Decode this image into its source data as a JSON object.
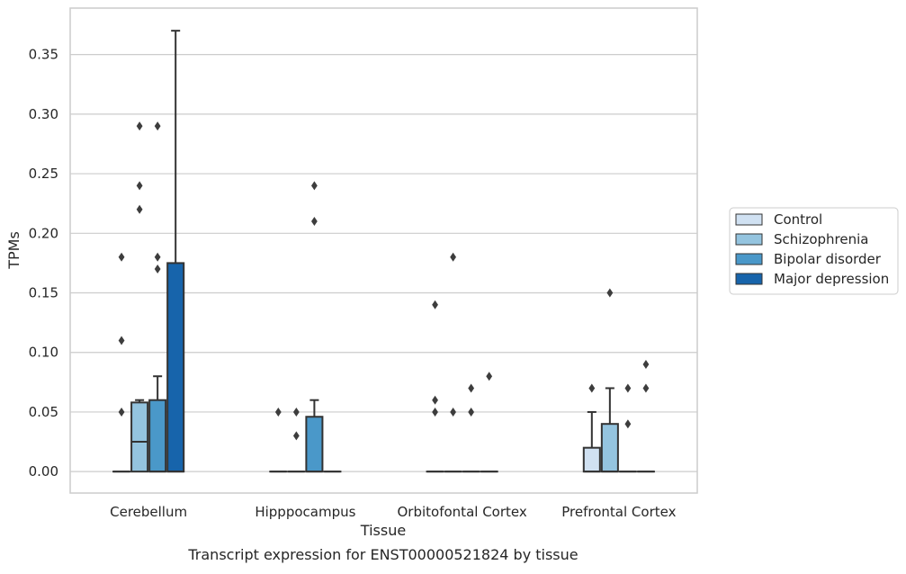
{
  "chart_data": {
    "type": "box",
    "xlabel": "Tissue",
    "ylabel": "TPMs",
    "caption": "Transcript expression for ENST00000521824 by tissue",
    "ylim": [
      -0.018,
      0.389
    ],
    "yticks": [
      "0.00",
      "0.05",
      "0.10",
      "0.15",
      "0.20",
      "0.25",
      "0.30",
      "0.35"
    ],
    "grid": true,
    "legend_position": "right",
    "categories": [
      "Cerebellum",
      "Hipppocampus",
      "Orbitofontal Cortex",
      "Prefrontal Cortex"
    ],
    "series": [
      {
        "name": "Control",
        "color": "#d0e1f2",
        "boxes": [
          {
            "q1": 0,
            "median": 0,
            "q3": 0,
            "whisker_low": 0,
            "whisker_high": 0,
            "outliers": [
              0.05,
              0.11,
              0.18
            ]
          },
          {
            "q1": 0,
            "median": 0,
            "q3": 0,
            "whisker_low": 0,
            "whisker_high": 0,
            "outliers": [
              0.05
            ]
          },
          {
            "q1": 0,
            "median": 0,
            "q3": 0,
            "whisker_low": 0,
            "whisker_high": 0,
            "outliers": [
              0.05,
              0.06,
              0.14
            ]
          },
          {
            "q1": 0,
            "median": 0,
            "q3": 0.02,
            "whisker_low": 0,
            "whisker_high": 0.05,
            "outliers": [
              0.07
            ]
          }
        ]
      },
      {
        "name": "Schizophrenia",
        "color": "#94c4df",
        "boxes": [
          {
            "q1": 0,
            "median": 0.025,
            "q3": 0.058,
            "whisker_low": 0,
            "whisker_high": 0.06,
            "outliers": [
              0.22,
              0.24,
              0.29
            ]
          },
          {
            "q1": 0,
            "median": 0,
            "q3": 0,
            "whisker_low": 0,
            "whisker_high": 0,
            "outliers": [
              0.03,
              0.05
            ]
          },
          {
            "q1": 0,
            "median": 0,
            "q3": 0,
            "whisker_low": 0,
            "whisker_high": 0,
            "outliers": [
              0.05,
              0.18
            ]
          },
          {
            "q1": 0,
            "median": 0,
            "q3": 0.04,
            "whisker_low": 0,
            "whisker_high": 0.07,
            "outliers": [
              0.15
            ]
          }
        ]
      },
      {
        "name": "Bipolar disorder",
        "color": "#4a98c9",
        "boxes": [
          {
            "q1": 0,
            "median": 0,
            "q3": 0.06,
            "whisker_low": 0,
            "whisker_high": 0.08,
            "outliers": [
              0.17,
              0.18,
              0.29
            ]
          },
          {
            "q1": 0,
            "median": 0,
            "q3": 0.046,
            "whisker_low": 0,
            "whisker_high": 0.06,
            "outliers": [
              0.21,
              0.24
            ]
          },
          {
            "q1": 0,
            "median": 0,
            "q3": 0,
            "whisker_low": 0,
            "whisker_high": 0,
            "outliers": [
              0.05,
              0.07
            ]
          },
          {
            "q1": 0,
            "median": 0,
            "q3": 0,
            "whisker_low": 0,
            "whisker_high": 0,
            "outliers": [
              0.04,
              0.07
            ]
          }
        ]
      },
      {
        "name": "Major depression",
        "color": "#1764ab",
        "boxes": [
          {
            "q1": 0,
            "median": 0,
            "q3": 0.175,
            "whisker_low": 0,
            "whisker_high": 0.37,
            "outliers": []
          },
          {
            "q1": 0,
            "median": 0,
            "q3": 0,
            "whisker_low": 0,
            "whisker_high": 0,
            "outliers": []
          },
          {
            "q1": 0,
            "median": 0,
            "q3": 0,
            "whisker_low": 0,
            "whisker_high": 0,
            "outliers": [
              0.08
            ]
          },
          {
            "q1": 0,
            "median": 0,
            "q3": 0,
            "whisker_low": 0,
            "whisker_high": 0,
            "outliers": [
              0.07,
              0.09
            ]
          }
        ]
      }
    ]
  }
}
